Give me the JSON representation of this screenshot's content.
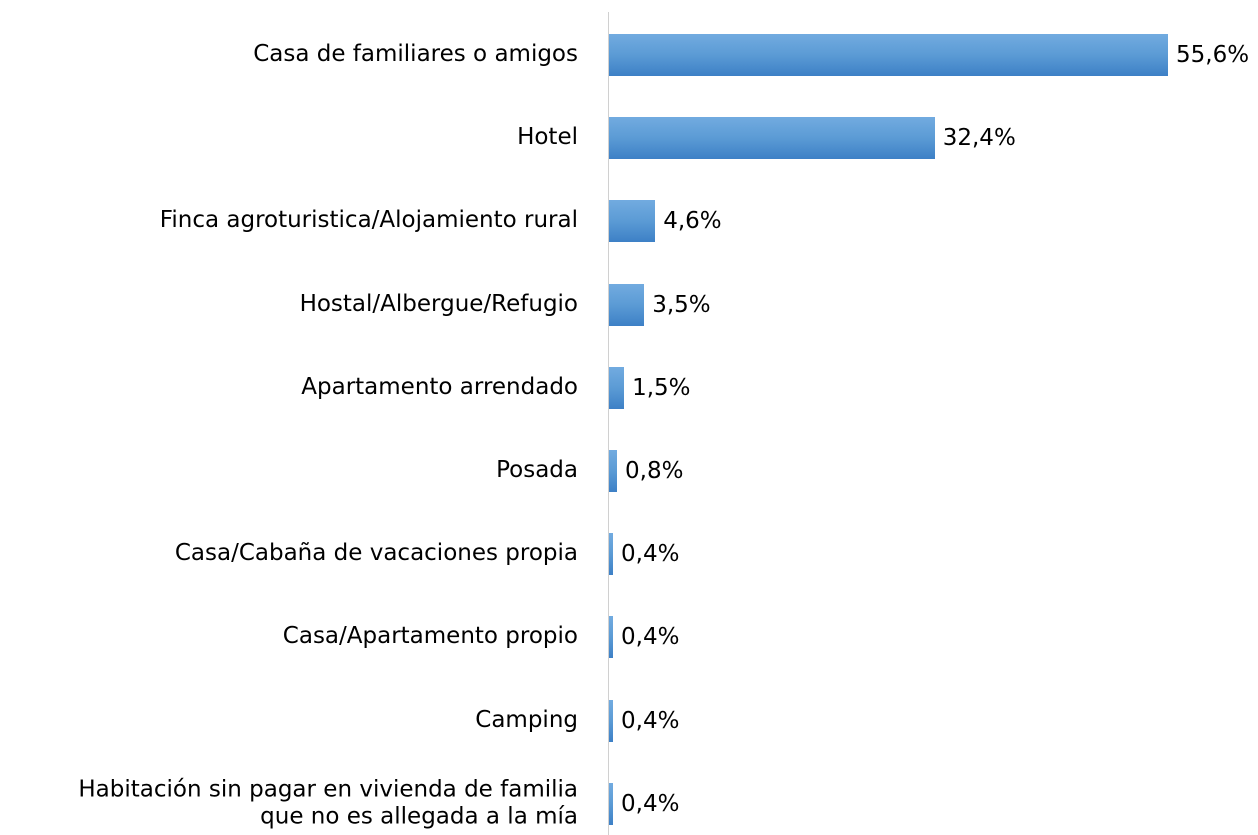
{
  "chart_data": {
    "type": "bar",
    "orientation": "horizontal",
    "color": "#5b9bd5",
    "categories": [
      "Casa de familiares o amigos",
      "Hotel",
      "Finca agroturistica/Alojamiento rural",
      "Hostal/Albergue/Refugio",
      "Apartamento arrendado",
      "Posada",
      "Casa/Cabaña de vacaciones propia",
      "Casa/Apartamento  propio",
      "Camping",
      "Habitación sin pagar en vivienda de familia\nque no es allegada a la mía"
    ],
    "values": [
      55.6,
      32.4,
      4.6,
      3.5,
      1.5,
      0.8,
      0.4,
      0.4,
      0.4,
      0.4
    ],
    "value_labels": [
      "55,6%",
      "32,4%",
      "4,6%",
      "3,5%",
      "1,5%",
      "0,8%",
      "0,4%",
      "0,4%",
      "0,4%",
      "0,4%"
    ]
  }
}
